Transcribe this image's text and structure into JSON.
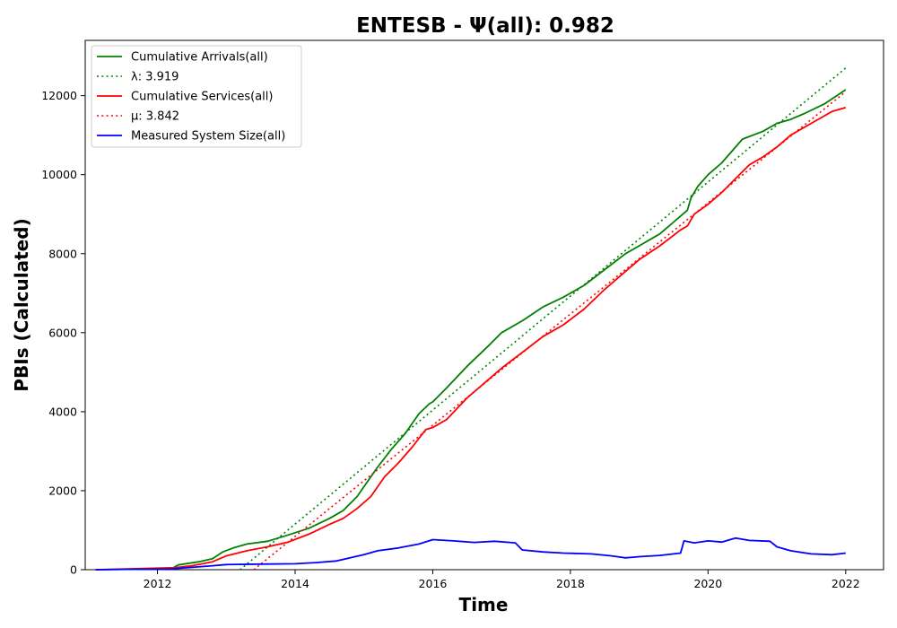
{
  "chart_data": {
    "type": "line",
    "title": "ENTESB -  Ψ(all): 0.982",
    "xlabel": "Time",
    "ylabel": "PBIs (Calculated)",
    "xlim": [
      2010.95,
      2022.55
    ],
    "ylim": [
      0,
      13400
    ],
    "xticks": [
      2012,
      2014,
      2016,
      2018,
      2020,
      2022
    ],
    "yticks": [
      0,
      2000,
      4000,
      6000,
      8000,
      10000,
      12000
    ],
    "grid": false,
    "legend_position": "top-left",
    "series": [
      {
        "name": "Cumulative Arrivals(all)",
        "color": "#008000",
        "style": "solid",
        "x": [
          2011.1,
          2012.2,
          2012.3,
          2012.6,
          2012.8,
          2012.95,
          2013.1,
          2013.3,
          2013.6,
          2013.9,
          2014.2,
          2014.5,
          2014.7,
          2014.9,
          2015.0,
          2015.2,
          2015.4,
          2015.6,
          2015.8,
          2015.95,
          2016.0,
          2016.2,
          2016.5,
          2016.8,
          2017.0,
          2017.3,
          2017.6,
          2017.9,
          2018.2,
          2018.5,
          2018.8,
          2019.0,
          2019.3,
          2019.5,
          2019.7,
          2019.75,
          2019.85,
          2020.0,
          2020.2,
          2020.4,
          2020.5,
          2020.8,
          2021.0,
          2021.2,
          2021.4,
          2021.7,
          2022.0
        ],
        "y": [
          0,
          20,
          120,
          200,
          280,
          450,
          550,
          650,
          720,
          880,
          1050,
          1300,
          1500,
          1850,
          2100,
          2600,
          3050,
          3450,
          3950,
          4200,
          4250,
          4600,
          5150,
          5650,
          6000,
          6300,
          6650,
          6900,
          7200,
          7600,
          8000,
          8200,
          8500,
          8800,
          9100,
          9400,
          9700,
          10000,
          10300,
          10700,
          10900,
          11100,
          11300,
          11400,
          11550,
          11800,
          12150
        ]
      },
      {
        "name": "λ: 3.919",
        "color": "#008000",
        "style": "dotted",
        "x": [
          2013.2,
          2022.0
        ],
        "y": [
          0,
          12700
        ]
      },
      {
        "name": "Cumulative Services(all)",
        "color": "#ff0000",
        "style": "solid",
        "x": [
          2011.1,
          2012.25,
          2012.5,
          2012.8,
          2013.0,
          2013.3,
          2013.6,
          2013.9,
          2014.2,
          2014.5,
          2014.7,
          2014.9,
          2015.1,
          2015.3,
          2015.5,
          2015.7,
          2015.9,
          2016.0,
          2016.2,
          2016.5,
          2016.8,
          2017.0,
          2017.3,
          2017.6,
          2017.9,
          2018.2,
          2018.5,
          2018.8,
          2019.0,
          2019.3,
          2019.6,
          2019.7,
          2019.8,
          2020.0,
          2020.2,
          2020.4,
          2020.6,
          2020.8,
          2021.0,
          2021.2,
          2021.5,
          2021.8,
          2022.0
        ],
        "y": [
          0,
          50,
          100,
          200,
          350,
          480,
          580,
          700,
          900,
          1150,
          1300,
          1550,
          1850,
          2350,
          2700,
          3100,
          3550,
          3600,
          3800,
          4350,
          4800,
          5100,
          5500,
          5900,
          6200,
          6600,
          7100,
          7550,
          7850,
          8200,
          8600,
          8700,
          9000,
          9250,
          9550,
          9900,
          10250,
          10450,
          10700,
          11000,
          11300,
          11600,
          11700
        ]
      },
      {
        "name": "μ: 3.842",
        "color": "#ff0000",
        "style": "dotted",
        "x": [
          2013.4,
          2022.0
        ],
        "y": [
          0,
          12100
        ]
      },
      {
        "name": "Measured System Size(all)",
        "color": "#0000ff",
        "style": "solid",
        "x": [
          2011.1,
          2012.2,
          2012.5,
          2012.8,
          2013.0,
          2013.5,
          2014.0,
          2014.3,
          2014.6,
          2014.8,
          2015.0,
          2015.2,
          2015.5,
          2015.8,
          2016.0,
          2016.3,
          2016.6,
          2016.9,
          2017.2,
          2017.3,
          2017.6,
          2017.9,
          2018.3,
          2018.6,
          2018.8,
          2019.0,
          2019.3,
          2019.6,
          2019.65,
          2019.8,
          2020.0,
          2020.2,
          2020.4,
          2020.6,
          2020.9,
          2021.0,
          2021.2,
          2021.5,
          2021.8,
          2022.0
        ],
        "y": [
          0,
          20,
          60,
          100,
          130,
          140,
          150,
          180,
          220,
          300,
          380,
          480,
          550,
          650,
          760,
          730,
          690,
          720,
          680,
          500,
          450,
          420,
          400,
          350,
          300,
          330,
          360,
          420,
          730,
          680,
          730,
          700,
          800,
          740,
          720,
          580,
          480,
          400,
          380,
          420
        ]
      }
    ]
  }
}
